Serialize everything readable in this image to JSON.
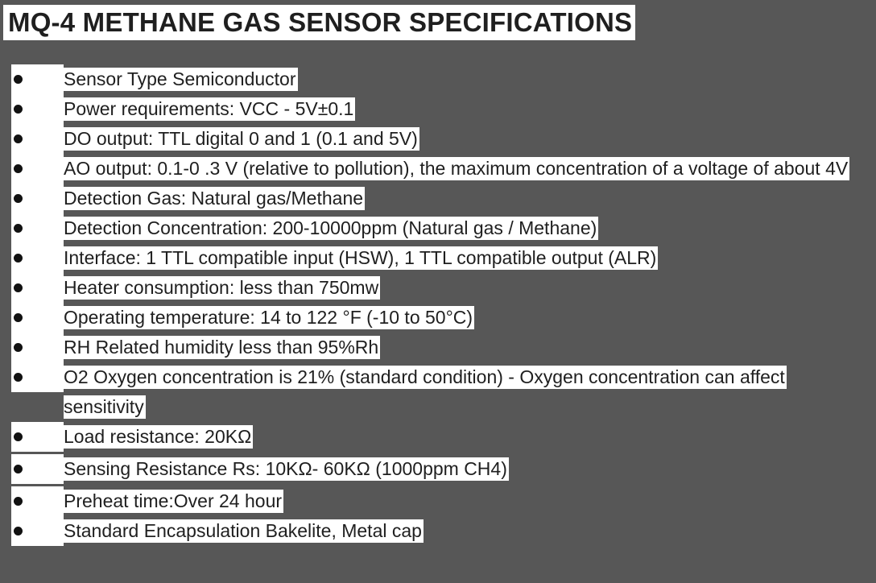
{
  "title": "MQ-4  METHANE GAS SENSOR SPECIFICATIONS",
  "items": [
    {
      "text": "Sensor Type Semiconductor"
    },
    {
      "text": "Power requirements: VCC - 5V±0.1"
    },
    {
      "text": "DO output: TTL digital 0 and 1 (0.1 and 5V)"
    },
    {
      "text": "AO output: 0.1-0 .3 V (relative to pollution), the maximum concentration of a voltage of about 4V"
    },
    {
      "text": "Detection Gas: Natural gas/Methane"
    },
    {
      "text": "Detection Concentration: 200-10000ppm (Natural gas / Methane)"
    },
    {
      "text": "Interface: 1 TTL compatible input (HSW), 1 TTL compatible output (ALR)"
    },
    {
      "text": "Heater consumption: less than 750mw"
    },
    {
      "text": "Operating temperature: 14 to 122 °F (-10 to 50°C)"
    },
    {
      "text": "RH Related humidity less than 95%Rh"
    },
    {
      "text": "O2 Oxygen concentration is 21% (standard condition) - Oxygen concentration can affect sensitivity"
    },
    {
      "text": "Load resistance: 20KΩ"
    },
    {
      "text": "Sensing Resistance Rs: 10KΩ- 60KΩ (1000ppm CH4)"
    },
    {
      "text": "Preheat time:Over 24 hour"
    },
    {
      "text": "Standard Encapsulation Bakelite, Metal cap"
    }
  ]
}
